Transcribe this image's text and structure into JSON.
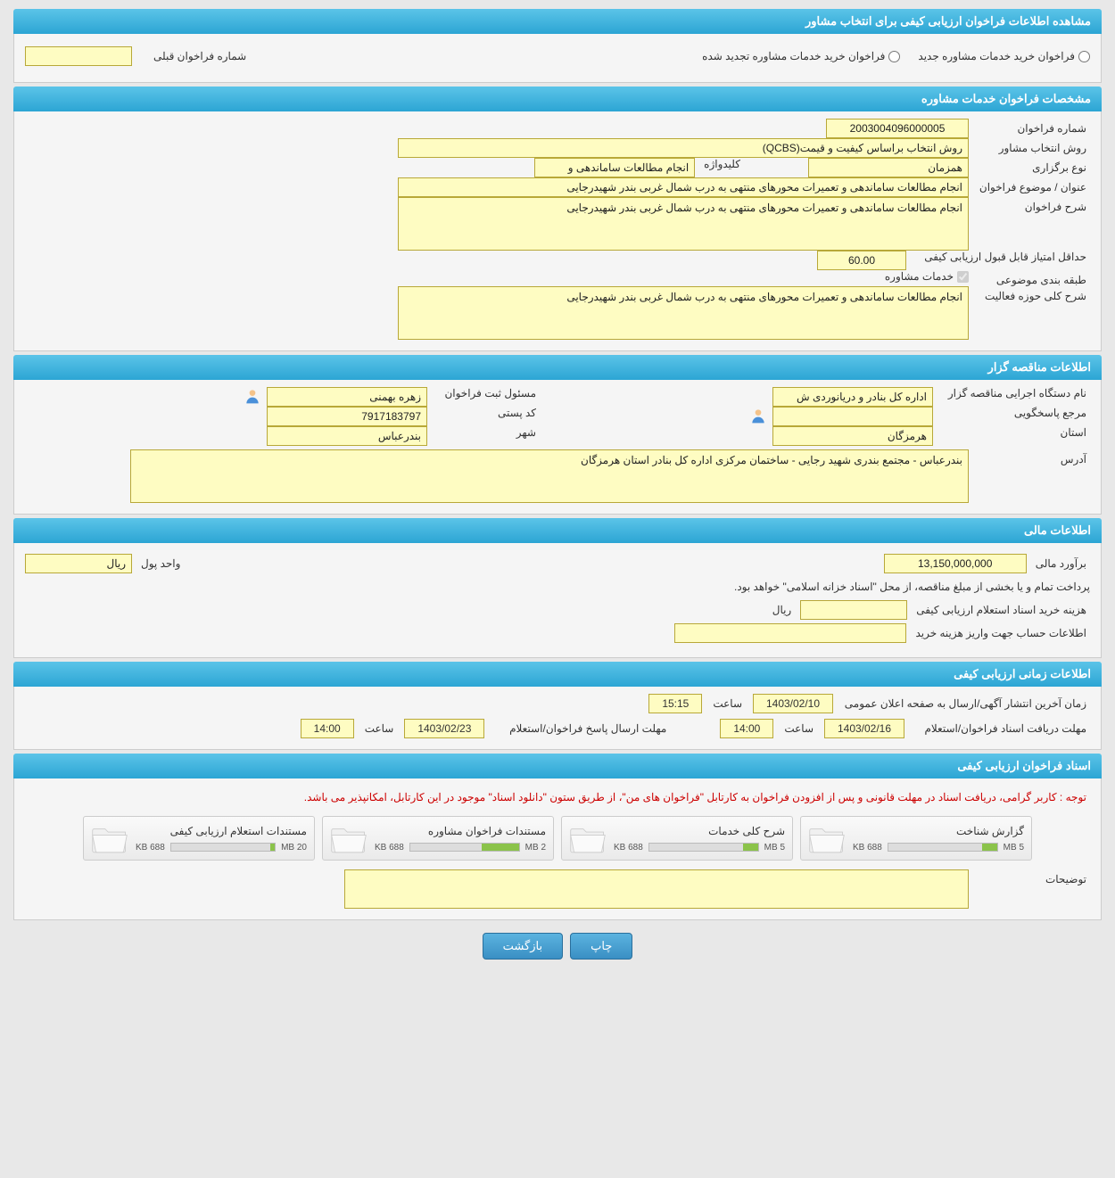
{
  "colors": {
    "header_bg_top": "#5bc4e8",
    "header_bg_bottom": "#2ca5d4",
    "header_text": "#ffffff",
    "field_bg": "#fefcc2",
    "field_border": "#b8a838",
    "body_bg": "#e8e8e8",
    "btn_bg_top": "#5bb3e0",
    "btn_bg_bottom": "#3a8fc4",
    "notice_color": "#cc0000",
    "progress_fill": "#8bc34a"
  },
  "page_title": "مشاهده اطلاعات فراخوان ارزیابی کیفی برای انتخاب مشاور",
  "top": {
    "radio1": "فراخوان خرید خدمات مشاوره جدید",
    "radio2": "فراخوان خرید خدمات مشاوره تجدید شده",
    "prev_call_label": "شماره فراخوان قبلی",
    "prev_call_value": ""
  },
  "spec": {
    "header": "مشخصات فراخوان خدمات مشاوره",
    "number_label": "شماره فراخوان",
    "number_value": "2003004096000005",
    "method_label": "روش انتخاب مشاور",
    "method_value": "روش انتخاب براساس کیفیت و قیمت(QCBS)",
    "type_label": "نوع برگزاری",
    "type_value": "همزمان",
    "keyword_label": "کلیدواژه",
    "keyword_value": "انجام مطالعات ساماندهی و",
    "title_label": "عنوان / موضوع فراخوان",
    "title_value": "انجام مطالعات ساماندهی و تعمیرات محورهای منتهی به درب شمال غربی بندر شهیدرجایی",
    "desc_label": "شرح فراخوان",
    "desc_value": "انجام مطالعات ساماندهی و تعمیرات محورهای منتهی به درب شمال غربی بندر شهیدرجایی",
    "min_score_label": "حداقل امتیاز قابل قبول ارزیابی کیفی",
    "min_score_value": "60.00",
    "category_label": "طبقه بندی موضوعی",
    "category_checkbox": "خدمات مشاوره",
    "activity_label": "شرح کلی حوزه فعالیت",
    "activity_value": "انجام مطالعات ساماندهی و تعمیرات محورهای منتهی به درب شمال غربی بندر شهیدرجایی"
  },
  "tenderer": {
    "header": "اطلاعات مناقصه گزار",
    "org_label": "نام دستگاه اجرایی مناقصه گزار",
    "org_value": "اداره کل بنادر و دریانوردی ش",
    "registrar_label": "مسئول ثبت فراخوان",
    "registrar_value": "زهره بهمنی",
    "contact_label": "مرجع پاسخگویی",
    "contact_value": "",
    "postal_label": "کد پستی",
    "postal_value": "7917183797",
    "province_label": "استان",
    "province_value": "هرمزگان",
    "city_label": "شهر",
    "city_value": "بندرعباس",
    "address_label": "آدرس",
    "address_value": "بندرعباس - مجتمع بندری شهید رجایی - ساختمان مرکزی اداره کل بنادر استان هرمزگان"
  },
  "financial": {
    "header": "اطلاعات مالی",
    "estimate_label": "برآورد مالی",
    "estimate_value": "13,150,000,000",
    "currency_label": "واحد پول",
    "currency_value": "ریال",
    "payment_note": "پرداخت تمام و یا بخشی از مبلغ مناقصه، از محل \"اسناد خزانه اسلامی\" خواهد بود.",
    "doc_cost_label": "هزینه خرید اسناد استعلام ارزیابی کیفی",
    "doc_cost_value": "",
    "doc_cost_unit": "ریال",
    "account_label": "اطلاعات حساب جهت واریز هزینه خرید",
    "account_value": ""
  },
  "timing": {
    "header": "اطلاعات زمانی ارزیابی کیفی",
    "publish_label": "زمان آخرین انتشار آگهی/ارسال به صفحه اعلان عمومی",
    "publish_date": "1403/02/10",
    "publish_time_label": "ساعت",
    "publish_time": "15:15",
    "receive_label": "مهلت دریافت اسناد فراخوان/استعلام",
    "receive_date": "1403/02/16",
    "receive_time_label": "ساعت",
    "receive_time": "14:00",
    "response_label": "مهلت ارسال پاسخ فراخوان/استعلام",
    "response_date": "1403/02/23",
    "response_time_label": "ساعت",
    "response_time": "14:00"
  },
  "documents": {
    "header": "اسناد فراخوان ارزیابی کیفی",
    "notice": "توجه : کاربر گرامی، دریافت اسناد در مهلت قانونی و پس از افزودن فراخوان به کارتابل \"فراخوان های من\"، از طریق ستون \"دانلود اسناد\" موجود در این کارتابل، امکانپذیر می باشد.",
    "items": [
      {
        "title": "گزارش شناخت",
        "used": "688 KB",
        "total": "5 MB",
        "fill_pct": 14
      },
      {
        "title": "شرح کلی خدمات",
        "used": "688 KB",
        "total": "5 MB",
        "fill_pct": 14
      },
      {
        "title": "مستندات فراخوان مشاوره",
        "used": "688 KB",
        "total": "2 MB",
        "fill_pct": 34
      },
      {
        "title": "مستندات استعلام ارزیابی کیفی",
        "used": "688 KB",
        "total": "20 MB",
        "fill_pct": 4
      }
    ],
    "comments_label": "توضیحات",
    "comments_value": ""
  },
  "buttons": {
    "print": "چاپ",
    "back": "بازگشت"
  }
}
